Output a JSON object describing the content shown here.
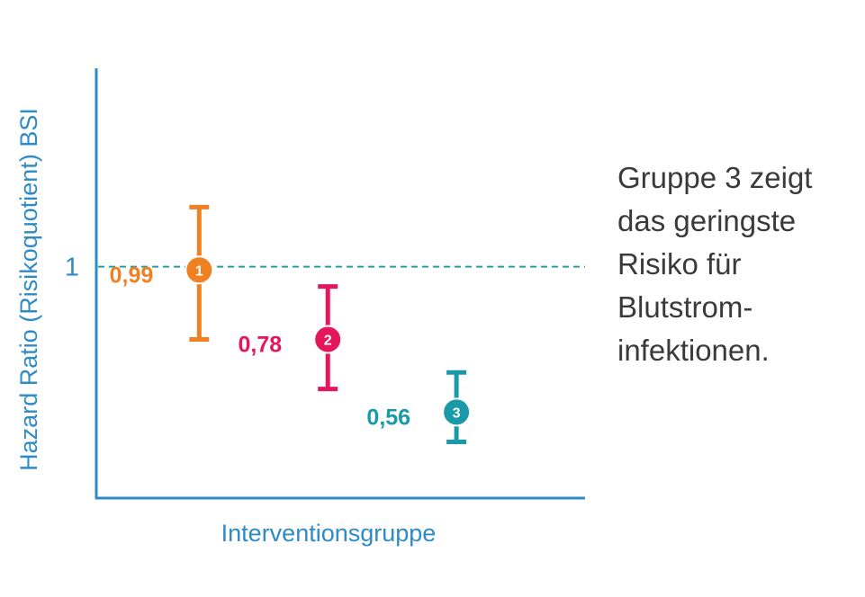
{
  "chart_data": {
    "type": "scatter",
    "xlabel": "Interventionsgruppe",
    "ylabel": "Hazard Ratio (Risikoquotient) BSI",
    "y_ticks": [
      {
        "value": 1,
        "label": "1"
      }
    ],
    "reference_line": {
      "y": 1,
      "style": "dashed",
      "color": "#2a9aa6"
    },
    "ylim": [
      0.3,
      1.6
    ],
    "xlim": [
      0.2,
      4.0
    ],
    "grid": false,
    "legend": "none",
    "annotation": "Gruppe 3 zeigt das geringste Risiko für Blutstrominfektionen.",
    "annotation_lines": [
      "Gruppe 3 zeigt",
      "das geringste",
      "Risiko für",
      "Blutstrom-",
      "infektionen."
    ],
    "points": [
      {
        "group": "1",
        "x": 1,
        "y": 0.99,
        "label": "0,99",
        "ci_low": 0.78,
        "ci_high": 1.18,
        "color": "#ef8122"
      },
      {
        "group": "2",
        "x": 2,
        "y": 0.78,
        "label": "0,78",
        "ci_low": 0.63,
        "ci_high": 0.94,
        "color": "#e5175b"
      },
      {
        "group": "3",
        "x": 3,
        "y": 0.56,
        "label": "0,56",
        "ci_low": 0.47,
        "ci_high": 0.68,
        "color": "#1a9aa8"
      }
    ],
    "axis_color": "#2e8bc6"
  }
}
